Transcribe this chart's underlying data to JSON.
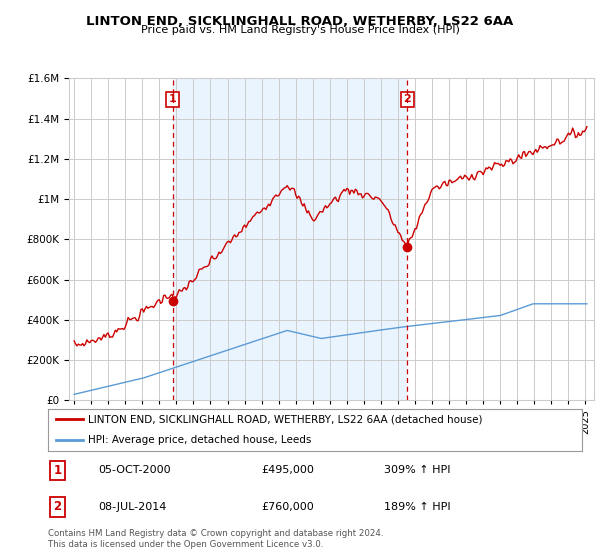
{
  "title": "LINTON END, SICKLINGHALL ROAD, WETHERBY, LS22 6AA",
  "subtitle": "Price paid vs. HM Land Registry's House Price Index (HPI)",
  "sale1_date": 2000.79,
  "sale1_price": 495000,
  "sale2_date": 2014.54,
  "sale2_price": 760000,
  "sale1_text": "05-OCT-2000",
  "sale1_price_text": "£495,000",
  "sale1_hpi_text": "309% ↑ HPI",
  "sale2_text": "08-JUL-2014",
  "sale2_price_text": "£760,000",
  "sale2_hpi_text": "189% ↑ HPI",
  "legend_house": "LINTON END, SICKLINGHALL ROAD, WETHERBY, LS22 6AA (detached house)",
  "legend_hpi": "HPI: Average price, detached house, Leeds",
  "footer": "Contains HM Land Registry data © Crown copyright and database right 2024.\nThis data is licensed under the Open Government Licence v3.0.",
  "red_color": "#cc0000",
  "blue_color": "#5b9bd5",
  "shade_color": "#ddeeff",
  "dashed_color": "#cc0000",
  "ylim": [
    0,
    1600000
  ],
  "xlim_start": 1994.7,
  "xlim_end": 2025.5,
  "bg_color": "#ffffff",
  "grid_color": "#cccccc"
}
